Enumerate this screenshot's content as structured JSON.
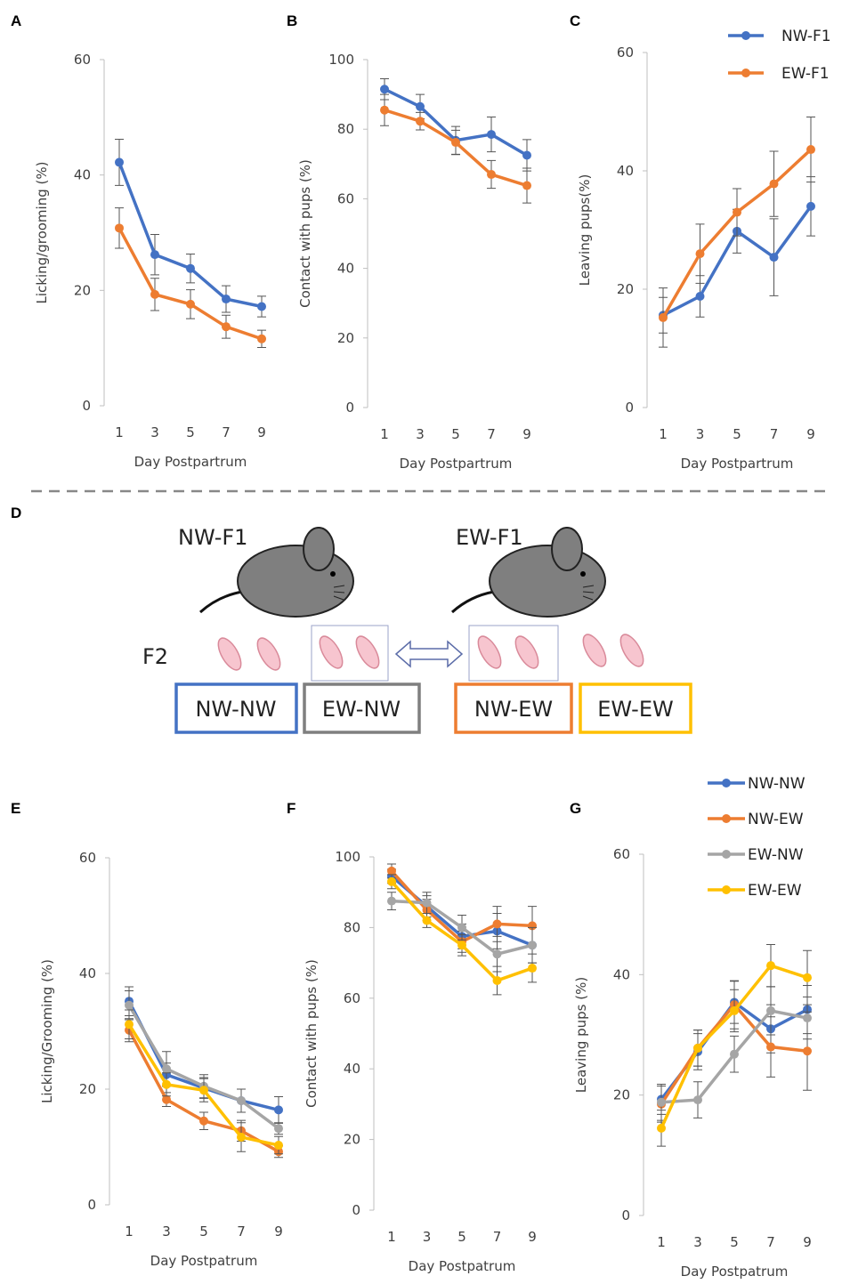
{
  "chart_data": [
    {
      "type": "line",
      "panel": "A",
      "ylabel": "Licking/grooming  (%)",
      "xlabel": "Day Postpartrum",
      "categories": [
        "1",
        "3",
        "5",
        "7",
        "9"
      ],
      "ylim": [
        0,
        60
      ],
      "yticks": [
        0,
        20,
        40,
        60
      ],
      "series": [
        {
          "color": "#4472c4",
          "values": [
            42.2,
            26.2,
            23.8,
            18.5,
            17.2
          ],
          "errors": [
            4,
            3.5,
            2.5,
            2.3,
            1.8
          ]
        },
        {
          "color": "#ed7d31",
          "values": [
            30.8,
            19.3,
            17.6,
            13.7,
            11.6
          ],
          "errors": [
            3.5,
            2.8,
            2.5,
            2,
            1.5
          ]
        }
      ]
    },
    {
      "type": "line",
      "panel": "B",
      "ylabel": "Contact with pups (%)",
      "xlabel": "Day Postpartrum",
      "categories": [
        "1",
        "3",
        "5",
        "7",
        "9"
      ],
      "ylim": [
        0,
        100
      ],
      "yticks": [
        0,
        20,
        40,
        60,
        80,
        100
      ],
      "series": [
        {
          "color": "#4472c4",
          "values": [
            91.5,
            86.5,
            76.8,
            78.5,
            72.5
          ],
          "errors": [
            3,
            3.5,
            4,
            5,
            4.5
          ]
        },
        {
          "color": "#ed7d31",
          "values": [
            85.5,
            82.3,
            76.2,
            67,
            63.8
          ],
          "errors": [
            4.5,
            2.5,
            3.5,
            4,
            5
          ]
        }
      ]
    },
    {
      "type": "line",
      "panel": "C",
      "ylabel": "Leaving pups(%)",
      "xlabel": "Day Postpartrum",
      "categories": [
        "1",
        "3",
        "5",
        "7",
        "9"
      ],
      "ylim": [
        0,
        60
      ],
      "yticks": [
        0,
        20,
        40,
        60
      ],
      "legend": "upper right",
      "series": [
        {
          "name": "NW-F1",
          "color": "#4472c4",
          "values": [
            15.6,
            18.8,
            29.8,
            25.4,
            34
          ],
          "errors": [
            3,
            3.5,
            3.7,
            6.5,
            5
          ]
        },
        {
          "name": "EW-F1",
          "color": "#ed7d31",
          "values": [
            15.2,
            26,
            33,
            37.8,
            43.6
          ],
          "errors": [
            5,
            5,
            4,
            5.5,
            5.5
          ]
        }
      ]
    },
    {
      "type": "line",
      "panel": "E",
      "ylabel": "Licking/Grooming (%)",
      "xlabel": "Day Postpatrum",
      "categories": [
        "1",
        "3",
        "5",
        "7",
        "9"
      ],
      "ylim": [
        0,
        60
      ],
      "yticks": [
        0,
        20,
        40,
        60
      ],
      "series": [
        {
          "color": "#4472c4",
          "values": [
            35.2,
            22.5,
            20.2,
            18,
            16.4
          ],
          "errors": [
            2.5,
            2,
            1.8,
            2,
            2.3
          ]
        },
        {
          "color": "#ed7d31",
          "values": [
            30.2,
            18.2,
            14.5,
            12.8,
            9.2
          ],
          "errors": [
            2,
            1.2,
            1.5,
            1.8,
            1
          ]
        },
        {
          "color": "#a5a5a5",
          "values": [
            34.5,
            23.5,
            20.5,
            18,
            13.2
          ],
          "errors": [
            2.5,
            3,
            2,
            2,
            1
          ]
        },
        {
          "color": "#ffc000",
          "values": [
            31.2,
            20.8,
            19.8,
            11.7,
            10.3
          ],
          "errors": [
            2.5,
            2,
            2,
            2.5,
            1.5
          ]
        }
      ]
    },
    {
      "type": "line",
      "panel": "F",
      "ylabel": "Contact with pups  (%)",
      "xlabel": "Day Postpatrum",
      "categories": [
        "1",
        "3",
        "5",
        "7",
        "9"
      ],
      "ylim": [
        0,
        100
      ],
      "yticks": [
        0,
        20,
        40,
        60,
        80,
        100
      ],
      "series": [
        {
          "color": "#4472c4",
          "values": [
            94.5,
            86,
            77.5,
            79,
            75
          ],
          "errors": [
            2,
            3,
            3.5,
            5,
            5
          ]
        },
        {
          "color": "#ed7d31",
          "values": [
            96,
            85,
            76,
            81,
            80.5
          ],
          "errors": [
            2,
            3,
            3,
            5,
            5.5
          ]
        },
        {
          "color": "#a5a5a5",
          "values": [
            87.5,
            87,
            80,
            72.5,
            75
          ],
          "errors": [
            2.5,
            3,
            3.5,
            5,
            5
          ]
        },
        {
          "color": "#ffc000",
          "values": [
            93,
            82,
            75,
            65,
            68.5
          ],
          "errors": [
            2,
            2,
            3,
            4,
            4
          ]
        }
      ]
    },
    {
      "type": "line",
      "panel": "G",
      "ylabel": "Leaving pups (%)",
      "xlabel": "Day  Postpatrum",
      "categories": [
        "1",
        "3",
        "5",
        "7",
        "9"
      ],
      "ylim": [
        0,
        60
      ],
      "yticks": [
        0,
        20,
        40,
        60
      ],
      "legend": "upper right",
      "series": [
        {
          "name": "NW-NW",
          "color": "#4472c4",
          "values": [
            19.3,
            27.2,
            35.4,
            31,
            34.2
          ],
          "errors": [
            2.5,
            3,
            3.5,
            4,
            4
          ]
        },
        {
          "name": "NW-EW",
          "color": "#ed7d31",
          "values": [
            18.5,
            27.8,
            35,
            28,
            27.3
          ],
          "errors": [
            3,
            3,
            4,
            5,
            6.5
          ]
        },
        {
          "name": "EW-NW",
          "color": "#a5a5a5",
          "values": [
            18.8,
            19.2,
            26.8,
            34,
            32.8
          ],
          "errors": [
            3,
            3,
            3,
            4,
            3.5
          ]
        },
        {
          "name": "EW-EW",
          "color": "#ffc000",
          "values": [
            14.5,
            27.8,
            34,
            41.5,
            39.5
          ],
          "errors": [
            3,
            3,
            3.5,
            3.5,
            4.5
          ]
        }
      ]
    }
  ],
  "diagram": {
    "panel": "D",
    "mother_left": "NW-F1",
    "mother_right": "EW-F1",
    "generation": "F2",
    "groups": [
      "NW-NW",
      "EW-NW",
      "NW-EW",
      "EW-EW"
    ]
  }
}
